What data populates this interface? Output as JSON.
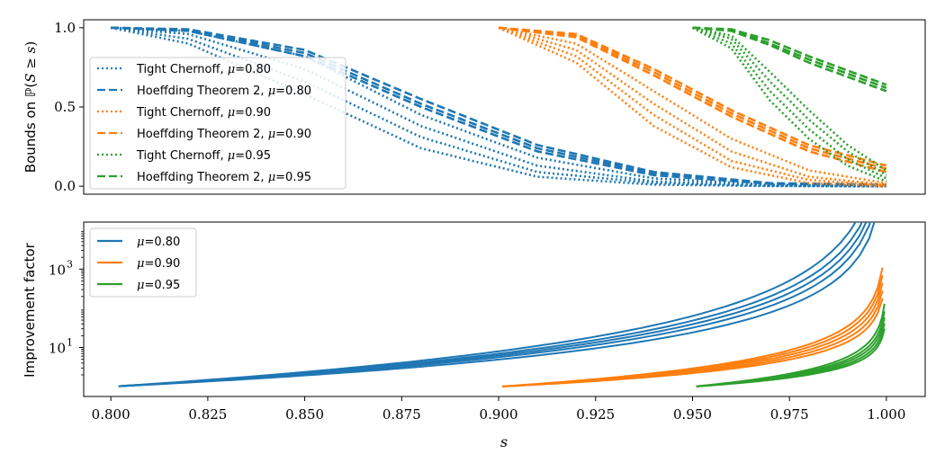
{
  "chart_data": [
    {
      "type": "line",
      "panel": "top",
      "title": "",
      "xlabel": "",
      "ylabel": "Bounds on ℙ(S ≥ s)",
      "xlim": [
        0.793,
        1.01
      ],
      "ylim": [
        -0.05,
        1.05
      ],
      "yscale": "linear",
      "yticks": [
        0.0,
        0.5,
        1.0
      ],
      "ytick_labels": [
        "0.0",
        "0.5",
        "1.0"
      ],
      "grid": false,
      "legend": "center-left",
      "series": [
        {
          "name": "Tight Chernoff, μ=0.80",
          "legend": "Tight Chernoff, μ=0.80",
          "color": "#1f77b4",
          "dash": "dotted",
          "x": [
            0.8,
            0.82,
            0.85,
            0.88,
            0.91,
            0.94,
            0.97,
            1.0
          ],
          "curves": [
            [
              1.0,
              0.98,
              0.82,
              0.45,
              0.18,
              0.05,
              0.01,
              0.0
            ],
            [
              1.0,
              0.96,
              0.74,
              0.38,
              0.13,
              0.03,
              0.005,
              0.0
            ],
            [
              1.0,
              0.93,
              0.66,
              0.31,
              0.09,
              0.02,
              0.003,
              0.0
            ],
            [
              1.0,
              0.9,
              0.58,
              0.24,
              0.06,
              0.01,
              0.001,
              0.0
            ]
          ]
        },
        {
          "name": "Hoeffding Theorem 2, μ=0.80",
          "legend": "Hoeffding Theorem 2, μ=0.80",
          "color": "#1f77b4",
          "dash": "dashed",
          "x": [
            0.8,
            0.82,
            0.85,
            0.88,
            0.91,
            0.94,
            0.97,
            1.0
          ],
          "curves": [
            [
              1.0,
              0.99,
              0.86,
              0.55,
              0.26,
              0.09,
              0.02,
              0.01
            ],
            [
              1.0,
              0.985,
              0.84,
              0.52,
              0.24,
              0.08,
              0.018,
              0.008
            ],
            [
              1.0,
              0.98,
              0.82,
              0.5,
              0.22,
              0.07,
              0.015,
              0.006
            ]
          ]
        },
        {
          "name": "Tight Chernoff, μ=0.90",
          "legend": "Tight Chernoff, μ=0.90",
          "color": "#ff7f0e",
          "dash": "dotted",
          "x": [
            0.9,
            0.92,
            0.94,
            0.96,
            0.98,
            1.0
          ],
          "curves": [
            [
              1.0,
              0.9,
              0.6,
              0.3,
              0.1,
              0.02
            ],
            [
              1.0,
              0.86,
              0.52,
              0.22,
              0.06,
              0.01
            ],
            [
              1.0,
              0.82,
              0.45,
              0.16,
              0.04,
              0.005
            ],
            [
              1.0,
              0.78,
              0.38,
              0.12,
              0.02,
              0.0
            ]
          ]
        },
        {
          "name": "Hoeffding Theorem 2, μ=0.90",
          "legend": "Hoeffding Theorem 2, μ=0.90",
          "color": "#ff7f0e",
          "dash": "dashed",
          "x": [
            0.9,
            0.92,
            0.94,
            0.96,
            0.98,
            1.0
          ],
          "curves": [
            [
              1.0,
              0.96,
              0.74,
              0.48,
              0.26,
              0.13
            ],
            [
              1.0,
              0.95,
              0.72,
              0.46,
              0.24,
              0.11
            ],
            [
              1.0,
              0.94,
              0.7,
              0.44,
              0.22,
              0.09
            ]
          ]
        },
        {
          "name": "Tight Chernoff, μ=0.95",
          "legend": "Tight Chernoff, μ=0.95",
          "color": "#2ca02c",
          "dash": "dotted",
          "x": [
            0.95,
            0.96,
            0.97,
            0.98,
            0.99,
            1.0
          ],
          "curves": [
            [
              1.0,
              0.95,
              0.72,
              0.48,
              0.26,
              0.1
            ],
            [
              1.0,
              0.93,
              0.66,
              0.42,
              0.22,
              0.07
            ],
            [
              1.0,
              0.9,
              0.6,
              0.36,
              0.17,
              0.05
            ],
            [
              1.0,
              0.87,
              0.54,
              0.3,
              0.13,
              0.03
            ]
          ]
        },
        {
          "name": "Hoeffding Theorem 2, μ=0.95",
          "legend": "Hoeffding Theorem 2, μ=0.95",
          "color": "#2ca02c",
          "dash": "dashed",
          "x": [
            0.95,
            0.96,
            0.97,
            0.98,
            0.99,
            1.0
          ],
          "curves": [
            [
              1.0,
              0.99,
              0.92,
              0.82,
              0.73,
              0.64
            ],
            [
              1.0,
              0.985,
              0.9,
              0.8,
              0.71,
              0.62
            ],
            [
              1.0,
              0.98,
              0.89,
              0.78,
              0.69,
              0.6
            ]
          ]
        }
      ]
    },
    {
      "type": "line",
      "panel": "bottom",
      "title": "",
      "xlabel": "s",
      "ylabel": "Improvement factor",
      "xlim": [
        0.793,
        1.01
      ],
      "ylim_log10": [
        -0.25,
        4.2
      ],
      "yscale": "log",
      "yticks_log10": [
        1,
        3
      ],
      "ytick_labels": [
        "10",
        "10"
      ],
      "ytick_exponents": [
        "1",
        "3"
      ],
      "xticks": [
        0.8,
        0.825,
        0.85,
        0.875,
        0.9,
        0.925,
        0.95,
        0.975,
        1.0
      ],
      "xtick_labels": [
        "0.800",
        "0.825",
        "0.850",
        "0.875",
        "0.900",
        "0.925",
        "0.950",
        "0.975",
        "1.000"
      ],
      "grid": false,
      "legend": "top-left",
      "series": [
        {
          "name": "μ=0.80",
          "legend": "μ=0.80",
          "color": "#1f77b4",
          "a": [
            -3.0,
            -2.8,
            -2.65,
            -2.5,
            -2.3
          ],
          "s_start": 0.802,
          "s_end": 0.998,
          "mu": 0.8
        },
        {
          "name": "μ=0.90",
          "legend": "μ=0.90",
          "color": "#ff7f0e",
          "a": [
            -1.55,
            -1.45,
            -1.35,
            -1.25,
            -1.15
          ],
          "s_start": 0.901,
          "s_end": 0.999,
          "mu": 0.9
        },
        {
          "name": "μ=0.95",
          "legend": "μ=0.95",
          "color": "#2ca02c",
          "a": [
            -1.1,
            -1.0,
            -0.92,
            -0.84,
            -0.77
          ],
          "s_start": 0.951,
          "s_end": 0.9995,
          "mu": 0.95
        }
      ]
    }
  ]
}
